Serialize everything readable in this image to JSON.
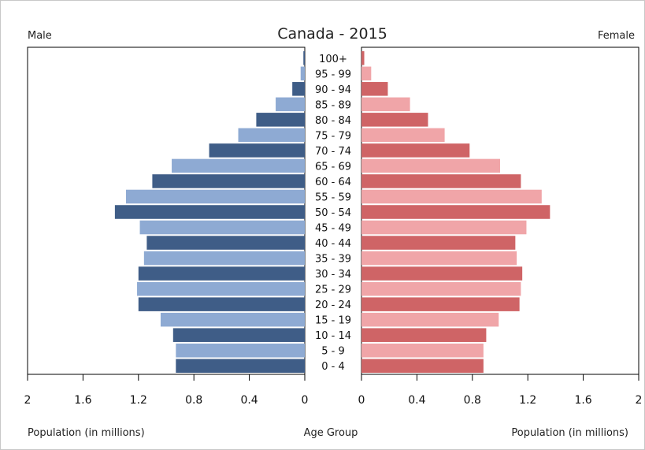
{
  "chart_data": {
    "type": "bar",
    "title": "Canada - 2015",
    "left_label": "Male",
    "right_label": "Female",
    "xlabel_left": "Population (in millions)",
    "xlabel_center": "Age Group",
    "xlabel_right": "Population (in millions)",
    "xlim": [
      0,
      2
    ],
    "male_ticks": [
      "2",
      "1.6",
      "1.2",
      "0.8",
      "0.4",
      "0"
    ],
    "female_ticks": [
      "0",
      "0.4",
      "0.8",
      "1.2",
      "1.6",
      "2"
    ],
    "categories": [
      "100+",
      "95 - 99",
      "90 - 94",
      "85 - 89",
      "80 - 84",
      "75 - 79",
      "70 - 74",
      "65 - 69",
      "60 - 64",
      "55 - 59",
      "50 - 54",
      "45 - 49",
      "40 - 44",
      "35 - 39",
      "30 - 34",
      "25 - 29",
      "20 - 24",
      "15 - 19",
      "10 - 14",
      "5 - 9",
      "0 - 4"
    ],
    "series": [
      {
        "name": "Male",
        "values": [
          0.01,
          0.03,
          0.09,
          0.21,
          0.35,
          0.48,
          0.69,
          0.96,
          1.1,
          1.29,
          1.37,
          1.19,
          1.14,
          1.16,
          1.2,
          1.21,
          1.2,
          1.04,
          0.95,
          0.93,
          0.93
        ]
      },
      {
        "name": "Female",
        "values": [
          0.02,
          0.07,
          0.19,
          0.35,
          0.48,
          0.6,
          0.78,
          1.0,
          1.15,
          1.3,
          1.36,
          1.19,
          1.11,
          1.12,
          1.16,
          1.15,
          1.14,
          0.99,
          0.9,
          0.88,
          0.88
        ]
      }
    ],
    "colors": {
      "male_dark": "#3f5d87",
      "male_light": "#8eaad3",
      "female_dark": "#cf6466",
      "female_light": "#f0a5a8"
    }
  }
}
